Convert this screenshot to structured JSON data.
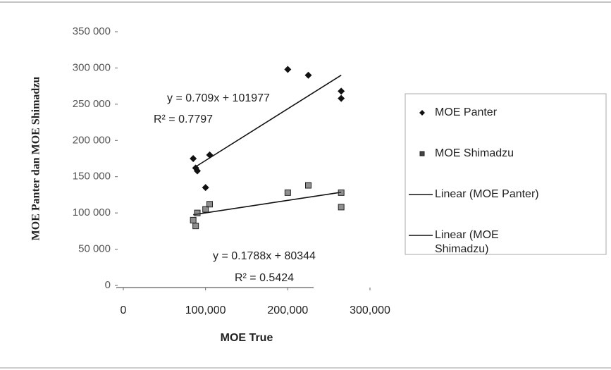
{
  "chart_data": {
    "type": "scatter",
    "x_label": "MOE True",
    "y_label": "MOE Panter dan MOE Shimadzu",
    "xlim": [
      0,
      300000
    ],
    "xticks": [
      0,
      {
        "value": 100000,
        "label": "100,000"
      },
      {
        "value": 200000,
        "label": "200,000"
      },
      {
        "value": 300000,
        "label": "300,000"
      }
    ],
    "ylim": [
      0,
      350000
    ],
    "yticks": [
      0,
      {
        "value": 50000,
        "label": "50 000"
      },
      {
        "value": 100000,
        "label": "100 000"
      },
      {
        "value": 150000,
        "label": "150 000"
      },
      {
        "value": 200000,
        "label": "200 000"
      },
      {
        "value": 250000,
        "label": "250 000"
      },
      {
        "value": 300000,
        "label": "300 000"
      },
      {
        "value": 350000,
        "label": "350 000"
      }
    ],
    "series": [
      {
        "name": "MOE Panter",
        "marker": "diamond",
        "color": "#111111",
        "trendline_name": "Linear (MOE Panter)",
        "x": [
          85000,
          88000,
          90000,
          100000,
          105000,
          200000,
          225000,
          265000,
          265000
        ],
        "values": [
          175000,
          162000,
          158000,
          135000,
          180000,
          298000,
          290000,
          258000,
          268000
        ]
      },
      {
        "name": "MOE Shimadzu",
        "marker": "square",
        "color": "#444444",
        "trendline_name": "Linear (MOE Shimadzu)",
        "x": [
          85000,
          88000,
          90000,
          100000,
          105000,
          200000,
          225000,
          265000,
          265000
        ],
        "values": [
          90000,
          82000,
          100000,
          105000,
          112000,
          128000,
          138000,
          128000,
          108000
        ]
      }
    ],
    "annotations": [
      "y = 0.709x + 101977",
      "R² = 0.7797",
      "y = 0.1788x + 80344",
      "R² = 0.5424"
    ],
    "legend": "right"
  }
}
